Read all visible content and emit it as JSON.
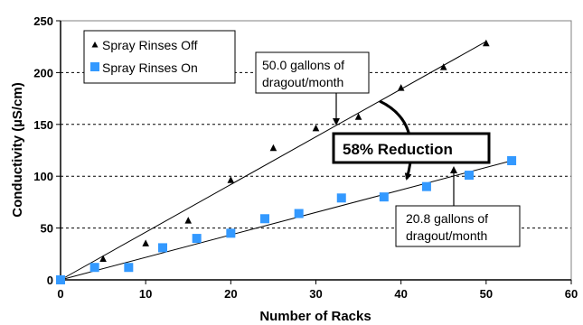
{
  "chart_data": {
    "type": "scatter",
    "xlabel": "Number of Racks",
    "ylabel": "Conductivity (µS/cm)",
    "xlim": [
      0,
      60
    ],
    "ylim": [
      0,
      250
    ],
    "xticks": [
      0,
      10,
      20,
      30,
      40,
      50,
      60
    ],
    "yticks": [
      0,
      50,
      100,
      150,
      200,
      250
    ],
    "grid": "horizontal dashed",
    "legend_position": "top-left",
    "series": [
      {
        "name": "Spray Rinses Off",
        "marker": "triangle",
        "color": "#000000",
        "x": [
          0,
          5,
          10,
          15,
          20,
          25,
          30,
          35,
          40,
          45,
          50
        ],
        "y": [
          0,
          20,
          35,
          57,
          96,
          127,
          146,
          157,
          185,
          205,
          228
        ],
        "trendline": {
          "from": [
            0,
            0
          ],
          "to": [
            50,
            230
          ]
        }
      },
      {
        "name": "Spray Rinses On",
        "marker": "square",
        "color": "#3399ff",
        "x": [
          0,
          4,
          8,
          12,
          16,
          20,
          24,
          28,
          33,
          38,
          43,
          48,
          53
        ],
        "y": [
          0,
          12,
          12,
          31,
          40,
          45,
          59,
          64,
          79,
          80,
          90,
          101,
          115
        ],
        "trendline": {
          "from": [
            0,
            0
          ],
          "to": [
            53,
            115
          ]
        }
      }
    ],
    "annotations": [
      {
        "lines": [
          "50.0 gallons of",
          "dragout/month"
        ],
        "points_to": [
          32.5,
          148
        ]
      },
      {
        "lines": [
          "20.8 gallons of",
          "dragout/month"
        ],
        "points_to": [
          46,
          101
        ]
      },
      {
        "text": "58% Reduction",
        "style": "bold boxed"
      }
    ]
  }
}
